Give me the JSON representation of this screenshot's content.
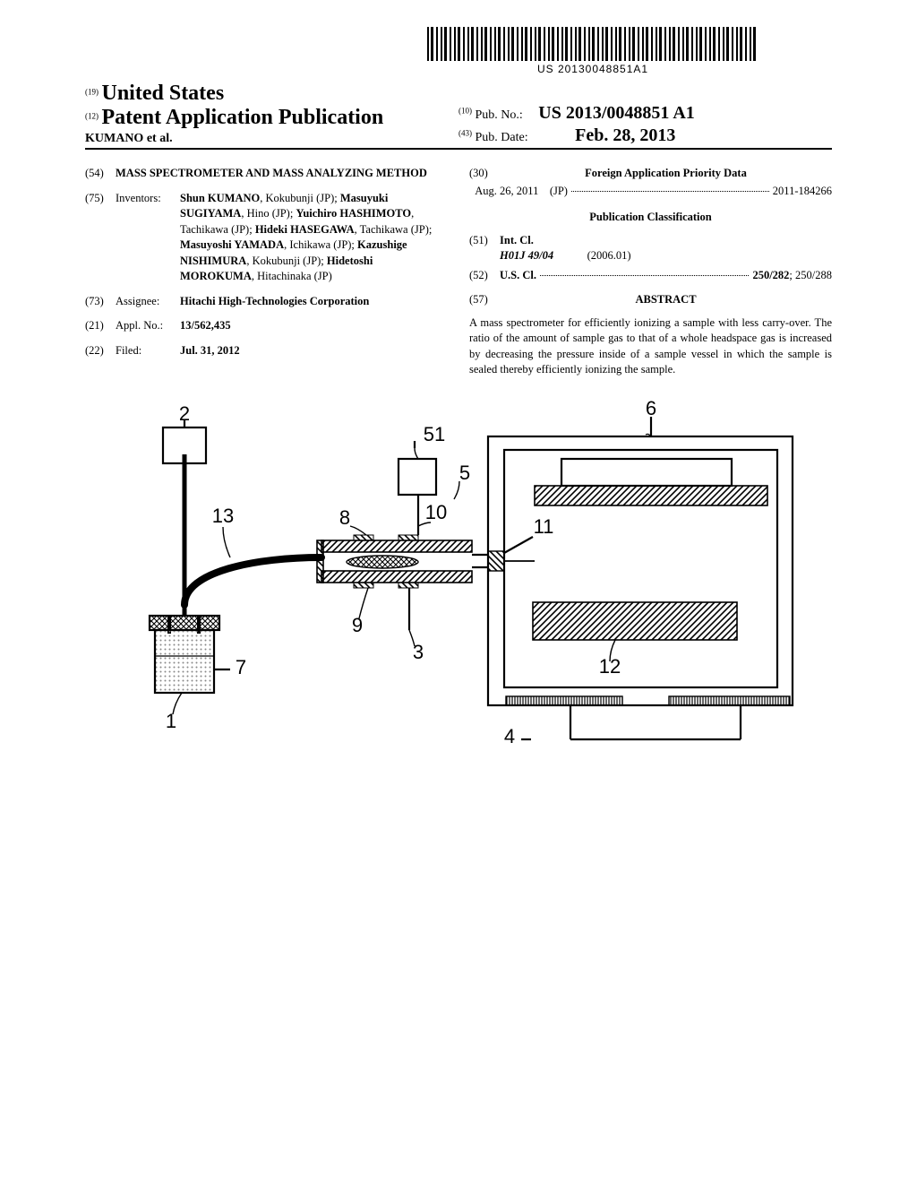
{
  "barcode": {
    "text": "US 20130048851A1"
  },
  "header": {
    "country_code": "(19)",
    "country": "United States",
    "pub_code": "(12)",
    "pub_type": "Patent Application Publication",
    "author_line": "KUMANO et al.",
    "pubno_code": "(10)",
    "pubno_label": "Pub. No.:",
    "pubno": "US 2013/0048851 A1",
    "pubdate_code": "(43)",
    "pubdate_label": "Pub. Date:",
    "pubdate": "Feb. 28, 2013"
  },
  "left": {
    "title_code": "(54)",
    "title": "MASS SPECTROMETER AND MASS ANALYZING METHOD",
    "inventors_code": "(75)",
    "inventors_label": "Inventors:",
    "inventors": [
      {
        "name": "Shun KUMANO",
        "loc": ", Kokubunji (JP);"
      },
      {
        "name": "Masuyuki SUGIYAMA",
        "loc": ", Hino (JP);"
      },
      {
        "name": "Yuichiro HASHIMOTO",
        "loc": ", Tachikawa (JP);"
      },
      {
        "name": "Hideki HASEGAWA",
        "loc": ", Tachikawa (JP);"
      },
      {
        "name": "Masuyoshi YAMADA",
        "loc": ", Ichikawa (JP);"
      },
      {
        "name": "Kazushige NISHIMURA",
        "loc": ", Kokubunji (JP);"
      },
      {
        "name": "Hidetoshi MOROKUMA",
        "loc": ", Hitachinaka (JP)"
      }
    ],
    "assignee_code": "(73)",
    "assignee_label": "Assignee:",
    "assignee": "Hitachi High-Technologies Corporation",
    "applno_code": "(21)",
    "applno_label": "Appl. No.:",
    "applno": "13/562,435",
    "filed_code": "(22)",
    "filed_label": "Filed:",
    "filed": "Jul. 31, 2012"
  },
  "right": {
    "foreign_code": "(30)",
    "foreign_heading": "Foreign Application Priority Data",
    "foreign_date": "Aug. 26, 2011",
    "foreign_cc": "(JP)",
    "foreign_no": "2011-184266",
    "classification_heading": "Publication Classification",
    "intcl_code": "(51)",
    "intcl_label": "Int. Cl.",
    "intcl_value": "H01J 49/04",
    "intcl_year": "(2006.01)",
    "uscl_code": "(52)",
    "uscl_label": "U.S. Cl.",
    "uscl_primary": "250/282",
    "uscl_secondary": "; 250/288",
    "abstract_code": "(57)",
    "abstract_label": "ABSTRACT",
    "abstract_text": "A mass spectrometer for efficiently ionizing a sample with less carry-over. The ratio of the amount of sample gas to that of a whole headspace gas is increased by decreasing the pressure inside of a sample vessel in which the sample is sealed thereby efficiently ionizing the sample."
  },
  "figure": {
    "labels": {
      "n1": "1",
      "n2": "2",
      "n3": "3",
      "n4": "4",
      "n5": "5",
      "n6": "6",
      "n7": "7",
      "n8": "8",
      "n9": "9",
      "n10": "10",
      "n11": "11",
      "n12": "12",
      "n13": "13",
      "n51": "51"
    },
    "style": {
      "stroke": "#000000",
      "stroke_width": 2.2,
      "hatch_color": "#000000",
      "label_fontsize": 22,
      "font_family": "Arial, sans-serif"
    }
  }
}
